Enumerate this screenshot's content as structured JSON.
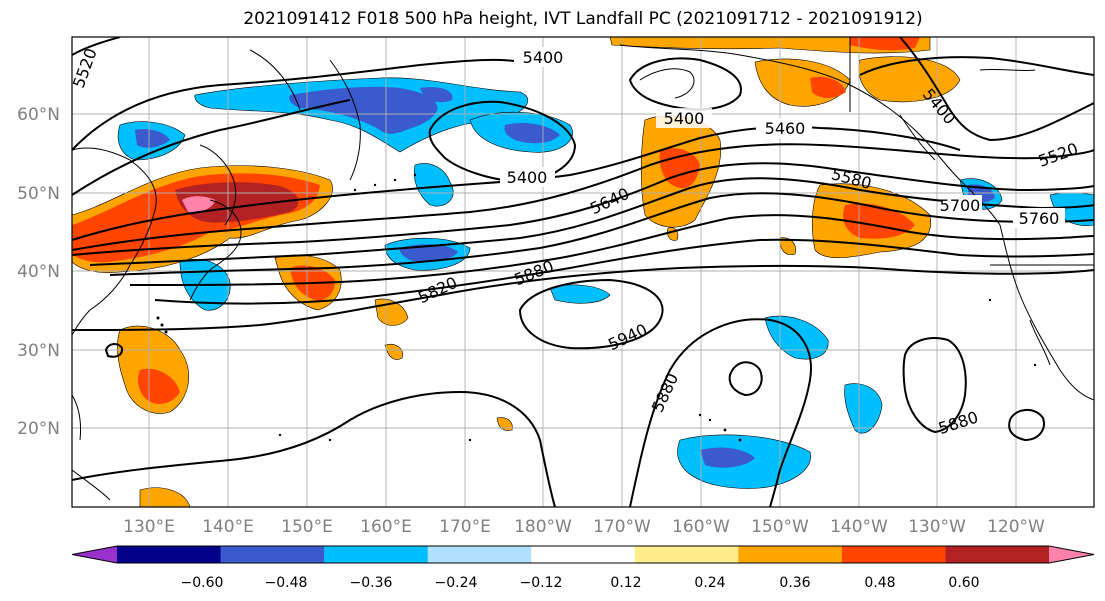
{
  "title": "2021091412 F018 500 hPa height, IVT Landfall PC (2021091712 - 2021091912)",
  "lat_labels": [
    "60°N",
    "50°N",
    "40°N",
    "30°N",
    "20°N"
  ],
  "lon_labels": [
    "130°E",
    "140°E",
    "150°E",
    "160°E",
    "170°E",
    "180°W",
    "170°W",
    "160°W",
    "150°W",
    "140°W",
    "130°W",
    "120°W"
  ],
  "contour_labels": [
    "5400",
    "5400",
    "5400",
    "5460",
    "5520",
    "5520",
    "5400",
    "5580",
    "5640",
    "5700",
    "5760",
    "5820",
    "5880",
    "5940",
    "5880",
    "5880"
  ],
  "colorbar": {
    "colors": [
      "#9932cc",
      "#00008b",
      "#3a5acd",
      "#00bfff",
      "#b0e2ff",
      "#ffffff",
      "#ffec8b",
      "#ffa500",
      "#ff4500",
      "#b22222",
      "#ff82ab"
    ],
    "tick_labels": [
      "−0.60",
      "−0.48",
      "−0.36",
      "−0.24",
      "−0.12",
      "0.12",
      "0.24",
      "0.36",
      "0.48",
      "0.60"
    ]
  }
}
